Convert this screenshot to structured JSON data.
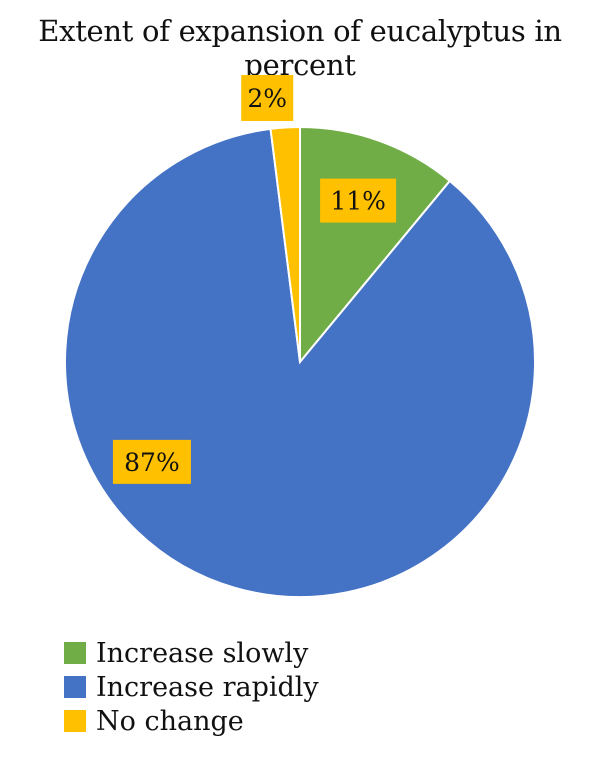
{
  "chart_data": {
    "type": "pie",
    "title": "Extent of expansion of eucalyptus in percent",
    "slices": [
      {
        "label": "Increase slowly",
        "value": 11,
        "display": "11%",
        "color": "#70ad47"
      },
      {
        "label": "Increase rapidly",
        "value": 87,
        "display": "87%",
        "color": "#4472c4"
      },
      {
        "label": "No change",
        "value": 2,
        "display": "2%",
        "color": "#ffc000"
      }
    ],
    "legend_position": "bottom-left",
    "label_box_color": "#ffc000"
  }
}
